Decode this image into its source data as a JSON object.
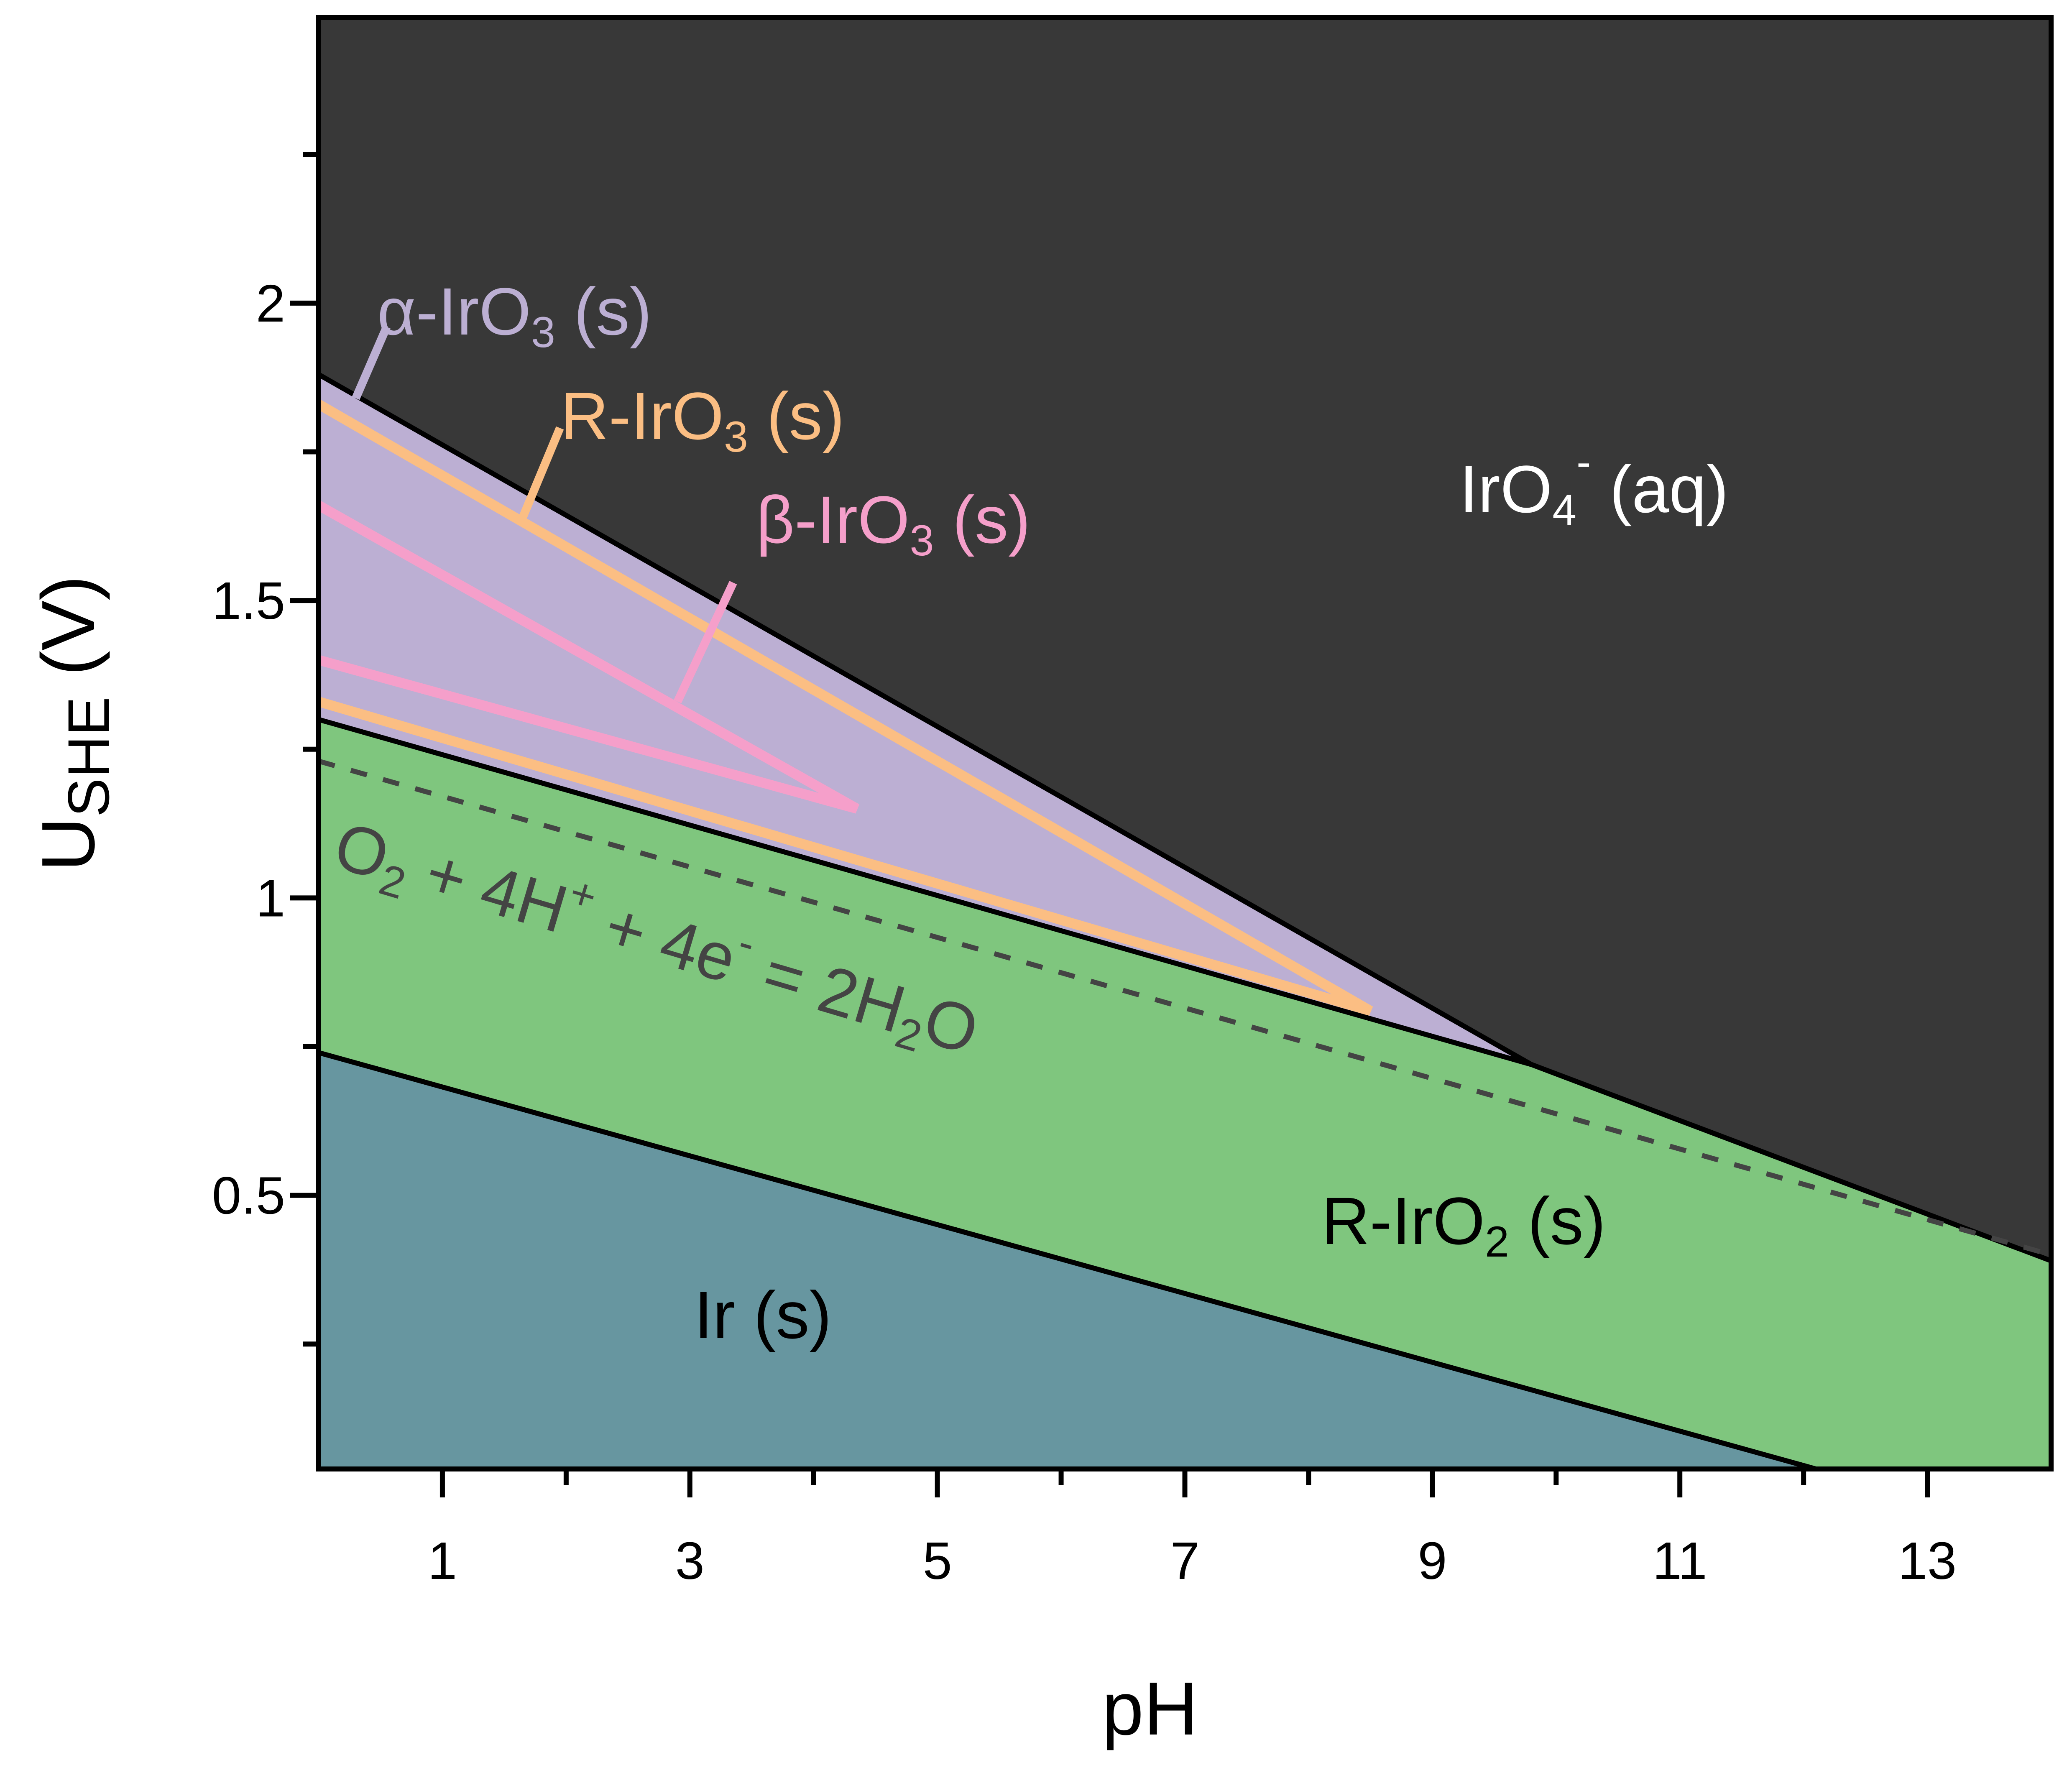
{
  "chart_data": {
    "type": "area",
    "title": "",
    "xlabel": "pH",
    "ylabel": "U",
    "ylabel_sub": "SHE",
    "ylabel_unit": "(V)",
    "xlim": [
      0,
      14
    ],
    "ylim": [
      0.04,
      2.48
    ],
    "x_ticks": [
      1,
      3,
      5,
      7,
      9,
      11,
      13
    ],
    "x_minor_ticks": [
      2,
      4,
      6,
      8,
      10,
      12
    ],
    "y_ticks": [
      0.5,
      1,
      1.5,
      2
    ],
    "y_tick_labels": [
      "0.5",
      "1",
      "1.5",
      "2"
    ],
    "y_minor_ticks": [
      0.25,
      0.75,
      1.25,
      1.75,
      2.25
    ],
    "grid": false,
    "colors": {
      "ir_aq": "#383838",
      "alpha": "#bcafd3",
      "r_iro2": "#7fc67e",
      "ir_s": "#6796a0",
      "r_iro3": "#fbbe83",
      "beta_iro3": "#f59fca",
      "boundary": "#000000",
      "water_line": "#444444"
    },
    "boundaries": [
      {
        "name": "ir-iro2",
        "points": [
          [
            0,
            0.74
          ],
          [
            12.1,
            0.04
          ]
        ]
      },
      {
        "name": "iro2-top-left",
        "points": [
          [
            0,
            1.3
          ],
          [
            9.8,
            0.72
          ]
        ]
      },
      {
        "name": "iro3-top",
        "points": [
          [
            0,
            1.88
          ],
          [
            9.8,
            0.72
          ]
        ]
      },
      {
        "name": "iro2-iro4",
        "points": [
          [
            9.8,
            0.72
          ],
          [
            14,
            0.39
          ]
        ]
      },
      {
        "name": "water-oxidation",
        "dashed": true,
        "points": [
          [
            0,
            1.23
          ],
          [
            14,
            0.4
          ]
        ]
      }
    ],
    "r_iro3_triangle": [
      [
        0,
        1.83
      ],
      [
        8.5,
        0.81
      ],
      [
        0,
        1.33
      ]
    ],
    "beta_iro3_triangle": [
      [
        0,
        1.66
      ],
      [
        4.35,
        1.15
      ],
      [
        0,
        1.4
      ]
    ],
    "region_labels": {
      "iro4": {
        "base": "IrO",
        "sub": "4",
        "sup": "-",
        "rest": " (aq)"
      },
      "alpha": {
        "base": "α-IrO",
        "sub": "3",
        "rest": " (s)"
      },
      "r_iro3": {
        "base": "R-IrO",
        "sub": "3",
        "rest": " (s)"
      },
      "beta": {
        "base": "β-IrO",
        "sub": "3",
        "rest": " (s)"
      },
      "r_iro2": {
        "base": "R-IrO",
        "sub": "2",
        "rest": " (s)"
      },
      "ir_s": {
        "base": "Ir (s)"
      },
      "water": {
        "p1": "O",
        "s1": "2",
        "p2": " + 4H",
        "s2": "+",
        "p3": " + 4e",
        "s3": "-",
        "p4": " = 2H",
        "s4": "2",
        "p5": "O"
      }
    }
  }
}
